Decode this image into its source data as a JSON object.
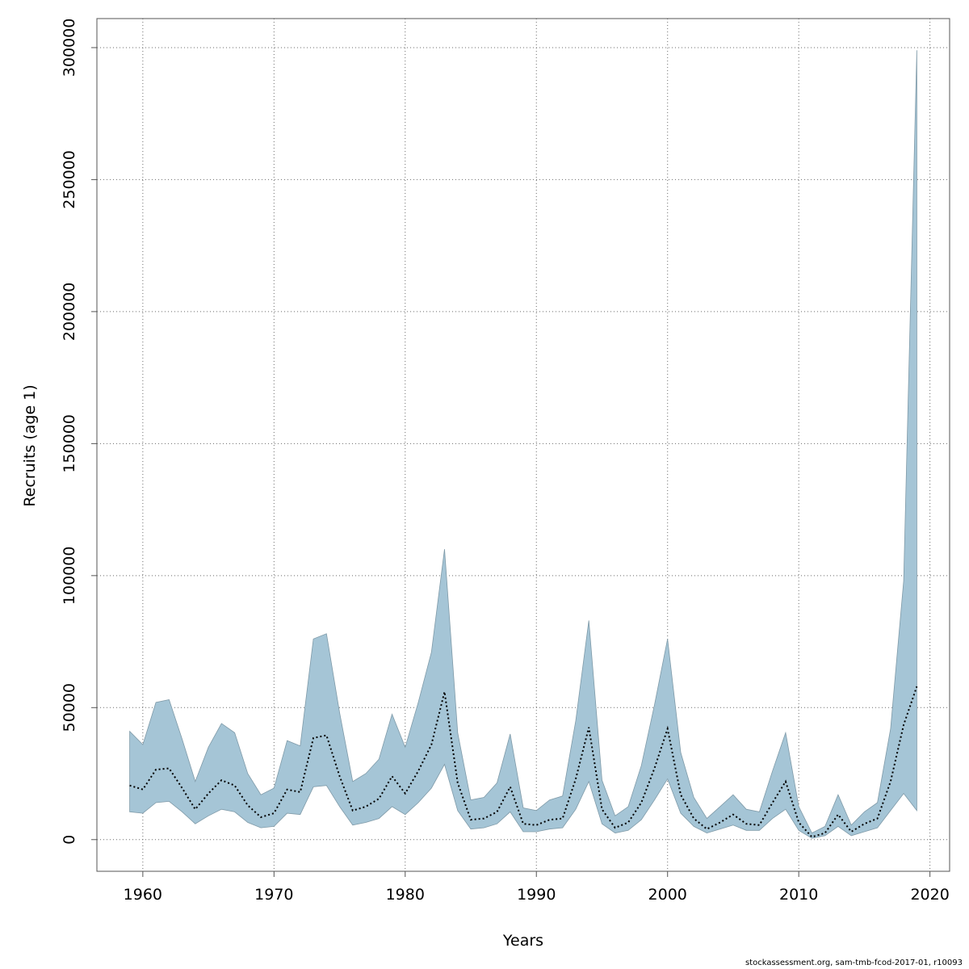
{
  "chart_data": {
    "type": "area",
    "xlabel": "Years",
    "ylabel": "Recruits (age 1)",
    "xlim": [
      1956.5,
      2021.5
    ],
    "ylim": [
      -12000,
      311000
    ],
    "xticks": [
      1960,
      1970,
      1980,
      1990,
      2000,
      2010,
      2020
    ],
    "yticks": [
      0,
      50000,
      100000,
      150000,
      200000,
      250000,
      300000
    ],
    "grid": true,
    "x": [
      1959,
      1960,
      1961,
      1962,
      1963,
      1964,
      1965,
      1966,
      1967,
      1968,
      1969,
      1970,
      1971,
      1972,
      1973,
      1974,
      1975,
      1976,
      1977,
      1978,
      1979,
      1980,
      1981,
      1982,
      1983,
      1984,
      1985,
      1986,
      1987,
      1988,
      1989,
      1990,
      1991,
      1992,
      1993,
      1994,
      1995,
      1996,
      1997,
      1998,
      1999,
      2000,
      2001,
      2002,
      2003,
      2004,
      2005,
      2006,
      2007,
      2008,
      2009,
      2010,
      2011,
      2012,
      2013,
      2014,
      2015,
      2016,
      2017,
      2018,
      2019
    ],
    "series": [
      {
        "role": "estimate",
        "values": [
          20500,
          19000,
          26500,
          27000,
          19500,
          11500,
          17500,
          22500,
          20500,
          13000,
          8500,
          10000,
          19000,
          18000,
          38500,
          39500,
          24000,
          11000,
          12500,
          15500,
          24000,
          17500,
          26000,
          36000,
          56000,
          21500,
          7500,
          8000,
          10500,
          20000,
          6000,
          5500,
          7500,
          8000,
          23000,
          42500,
          11500,
          4500,
          6500,
          14000,
          27000,
          42000,
          17000,
          8000,
          4000,
          6500,
          9500,
          6000,
          5500,
          14000,
          22000,
          6500,
          1000,
          2500,
          9500,
          3000,
          6000,
          8000,
          22000,
          43500,
          58000
        ]
      },
      {
        "role": "upper",
        "values": [
          41000,
          36000,
          52000,
          53000,
          38000,
          22000,
          35000,
          44000,
          40500,
          25000,
          17000,
          19500,
          37500,
          35500,
          76000,
          78000,
          48000,
          22000,
          25000,
          30500,
          47500,
          35000,
          52000,
          71000,
          110000,
          40500,
          15000,
          16000,
          21500,
          40000,
          12000,
          11000,
          15000,
          16500,
          45000,
          83000,
          22500,
          9000,
          12500,
          28000,
          51000,
          76000,
          33000,
          16000,
          8000,
          12500,
          17000,
          11500,
          10500,
          26000,
          40500,
          12500,
          2500,
          5000,
          17000,
          5500,
          10500,
          14000,
          42000,
          98000,
          299000
        ]
      },
      {
        "role": "lower",
        "values": [
          10500,
          10000,
          14000,
          14500,
          10500,
          6000,
          9000,
          11500,
          10500,
          6500,
          4500,
          5000,
          10000,
          9500,
          20000,
          20500,
          12500,
          5500,
          6500,
          8000,
          12500,
          9500,
          14000,
          19500,
          28500,
          11000,
          4000,
          4500,
          6000,
          10500,
          3000,
          3000,
          4000,
          4500,
          11500,
          22000,
          6000,
          2500,
          3500,
          7500,
          15000,
          23000,
          10000,
          5000,
          2500,
          4000,
          5500,
          3500,
          3500,
          8000,
          11500,
          3500,
          500,
          1500,
          5000,
          1500,
          3000,
          4500,
          11000,
          17500,
          11000
        ]
      }
    ],
    "colors": {
      "band": "#a5c5d6",
      "band_edge": "#7f9aa8",
      "line": "#000000",
      "grid": "#6b6b6b",
      "axis": "#555555"
    }
  },
  "footer": {
    "credit": "stockassessment.org, sam-tmb-fcod-2017-01, r10093"
  }
}
